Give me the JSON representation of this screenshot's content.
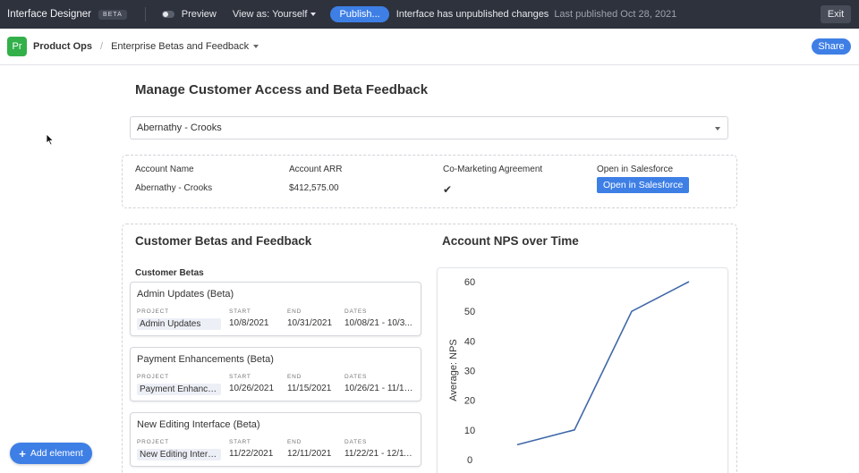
{
  "topbar": {
    "title": "Interface Designer",
    "beta": "BETA",
    "preview": "Preview",
    "view_as": "View as: Yourself",
    "publish": "Publish...",
    "unpublished": "Interface has unpublished changes",
    "last_published": "Last published Oct 28, 2021",
    "exit": "Exit"
  },
  "breadcrumb": {
    "badge": "Pr",
    "app": "Product Ops",
    "slash": "/",
    "page": "Enterprise Betas and Feedback",
    "share": "Share"
  },
  "main": {
    "title": "Manage Customer Access and Beta Feedback",
    "selected_account": "Abernathy - Crooks",
    "account": {
      "name_label": "Account Name",
      "name_value": "Abernathy - Crooks",
      "arr_label": "Account ARR",
      "arr_value": "$412,575.00",
      "comarketing_label": "Co-Marketing Agreement",
      "comarketing_check": "✔",
      "sf_label": "Open in Salesforce",
      "sf_button": "Open in Salesforce"
    },
    "betas_title": "Customer Betas and Feedback",
    "betas_label": "Customer Betas",
    "card_labels": {
      "project": "PROJECT",
      "start": "START",
      "end": "END",
      "dates": "DATES"
    },
    "cards": [
      {
        "title": "Admin Updates (Beta)",
        "project": "Admin Updates",
        "start": "10/8/2021",
        "end": "10/31/2021",
        "dates": "10/08/21 - 10/3..."
      },
      {
        "title": "Payment Enhancements (Beta)",
        "project": "Payment Enhanceme",
        "start": "10/26/2021",
        "end": "11/15/2021",
        "dates": "10/26/21 - 11/15..."
      },
      {
        "title": "New Editing Interface (Beta)",
        "project": "New Editing Interface",
        "start": "11/22/2021",
        "end": "12/11/2021",
        "dates": "11/22/21 - 12/11/..."
      }
    ],
    "nps_title": "Account NPS over Time"
  },
  "chart_data": {
    "type": "line",
    "title": "Account NPS over Time",
    "ylabel": "Average: NPS",
    "xlabel": "",
    "ylim": [
      0,
      60
    ],
    "yticks": [
      0,
      10,
      20,
      30,
      40,
      50,
      60
    ],
    "series": [
      {
        "values": [
          5,
          10,
          50,
          60
        ]
      }
    ],
    "line_color": "#3f68a8"
  },
  "add_element": "Add element",
  "colors": {
    "accent": "#3e7fe6",
    "topbar": "#2e323d",
    "badge": "#33b04a"
  }
}
